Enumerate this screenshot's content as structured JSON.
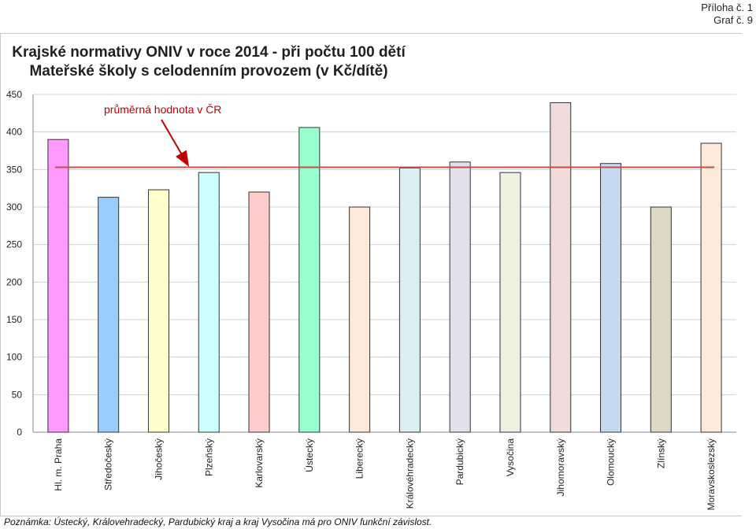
{
  "header": {
    "attachment": "Příloha č. 1",
    "graph_no": "Graf č. 9"
  },
  "chart_data": {
    "type": "bar",
    "title": "Krajské normativy ONIV v roce 2014 - při počtu 100 dětí",
    "subtitle": "Mateřské školy s celodenním provozem (v Kč/dítě)",
    "categories": [
      "Hl. m. Praha",
      "Středočeský",
      "Jihočeský",
      "Plzeňský",
      "Karlovarský",
      "Ústecký",
      "Liberecký",
      "Královéhradecký",
      "Pardubický",
      "Vysočina",
      "Jihomoravský",
      "Olomoucký",
      "Zlínský",
      "Moravskoslezský"
    ],
    "values": [
      390,
      313,
      323,
      346,
      320,
      406,
      300,
      352,
      360,
      346,
      439,
      358,
      300,
      385
    ],
    "bar_colors": [
      "#ff99ff",
      "#99ccff",
      "#ffffcc",
      "#ccffff",
      "#ffcccc",
      "#99ffcc",
      "#fde9d9",
      "#daeef3",
      "#e4dfec",
      "#ebf1de",
      "#f2dcdb",
      "#c5d9f1",
      "#ddd9c4",
      "#fde9d9"
    ],
    "ylim": [
      0,
      450
    ],
    "yticks": [
      0,
      50,
      100,
      150,
      200,
      250,
      300,
      350,
      400,
      450
    ],
    "average": 353,
    "average_label": "průměrná hodnota v ČR",
    "average_color": "#c0504d",
    "grid": "horizontal",
    "xlabel": "",
    "ylabel": ""
  },
  "footnote": "Poznámka: Ústecký, Královehradecký, Pardubický kraj a kraj Vysočina má pro ONIV funkční závislost."
}
